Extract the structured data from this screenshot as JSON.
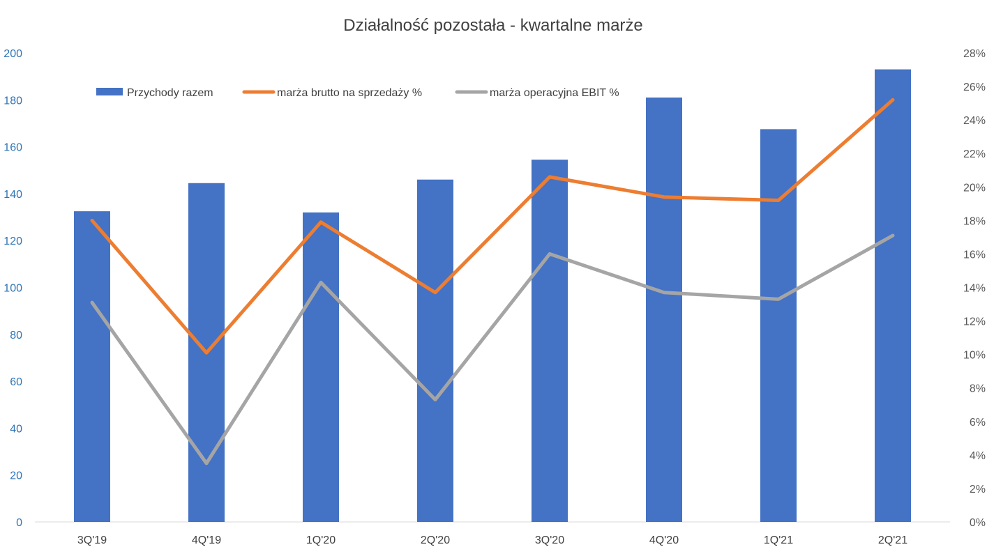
{
  "chart_data": {
    "type": "bar",
    "title": "Działalność pozostała - kwartalne marże",
    "categories": [
      "3Q'19",
      "4Q'19",
      "1Q'20",
      "2Q'20",
      "3Q'20",
      "4Q'20",
      "1Q'21",
      "2Q'21"
    ],
    "series": [
      {
        "name": "Przychody razem",
        "type": "bar",
        "axis": "left",
        "color": "#4472c4",
        "values": [
          132.5,
          144.5,
          132,
          146,
          154.5,
          181,
          167.5,
          193
        ]
      },
      {
        "name": "marża brutto na sprzedaży %",
        "type": "line",
        "axis": "right",
        "color": "#ed7d31",
        "values": [
          18.0,
          10.1,
          17.9,
          13.7,
          20.6,
          19.4,
          19.2,
          25.2
        ]
      },
      {
        "name": "marża operacyjna EBIT %",
        "type": "line",
        "axis": "right",
        "color": "#a5a5a5",
        "values": [
          13.1,
          3.5,
          14.3,
          7.3,
          16.0,
          13.7,
          13.3,
          17.1
        ]
      }
    ],
    "y_left": {
      "min": 0,
      "max": 200,
      "step": 20,
      "color": "#2e74b5",
      "ticks": [
        "0",
        "20",
        "40",
        "60",
        "80",
        "100",
        "120",
        "140",
        "160",
        "180",
        "200"
      ]
    },
    "y_right": {
      "min": 0,
      "max": 28,
      "step": 2,
      "color": "#595959",
      "ticks": [
        "0%",
        "2%",
        "4%",
        "6%",
        "8%",
        "10%",
        "12%",
        "14%",
        "16%",
        "18%",
        "20%",
        "22%",
        "24%",
        "26%",
        "28%"
      ]
    },
    "grid": false,
    "legend": "top-left"
  }
}
